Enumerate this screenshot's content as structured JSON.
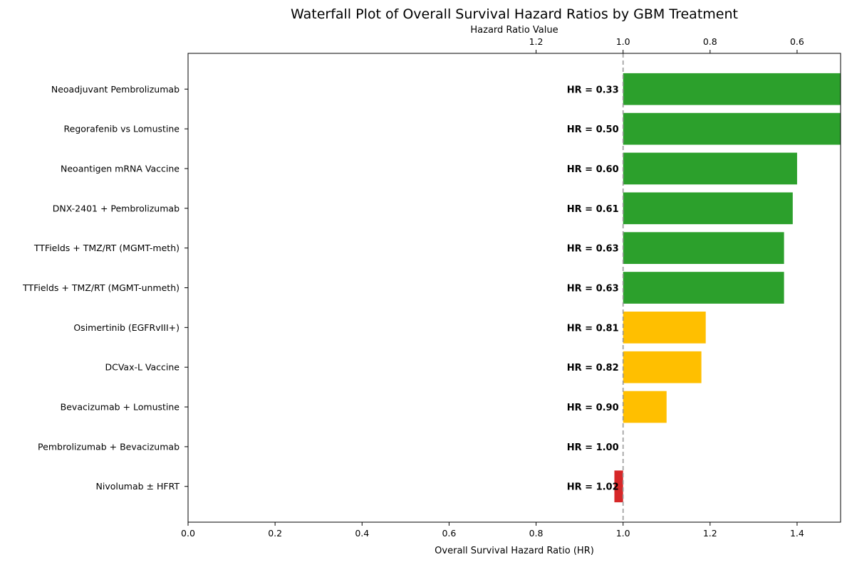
{
  "chart_data": {
    "type": "bar",
    "orientation": "horizontal",
    "title": "Waterfall Plot of Overall Survival Hazard Ratios by GBM Treatment",
    "xlabel": "Overall Survival Hazard Ratio (HR)",
    "top_axis_label": "Hazard Ratio Value",
    "xlim": [
      0.0,
      1.5
    ],
    "reference_line": 1.0,
    "x_ticks": [
      "0.0",
      "0.2",
      "0.4",
      "0.6",
      "0.8",
      "1.0",
      "1.2",
      "1.4"
    ],
    "top_ticks": [
      {
        "position": 0.8,
        "label": "1.2"
      },
      {
        "position": 1.0,
        "label": "1.0"
      },
      {
        "position": 1.2,
        "label": "0.8"
      },
      {
        "position": 1.4,
        "label": "0.6"
      }
    ],
    "categories": [
      "Neoadjuvant Pembrolizumab",
      "Regorafenib vs Lomustine",
      "Neoantigen mRNA Vaccine",
      "DNX-2401 + Pembrolizumab",
      "TTFields + TMZ/RT (MGMT-meth)",
      "TTFields + TMZ/RT (MGMT-unmeth)",
      "Osimertinib (EGFRvIII+)",
      "DCVax-L Vaccine",
      "Bevacizumab + Lomustine",
      "Pembrolizumab + Bevacizumab",
      "Nivolumab ± HFRT"
    ],
    "values": [
      0.33,
      0.5,
      0.6,
      0.61,
      0.63,
      0.63,
      0.81,
      0.82,
      0.9,
      1.0,
      1.02
    ],
    "labels": [
      "HR = 0.33",
      "HR = 0.50",
      "HR = 0.60",
      "HR = 0.61",
      "HR = 0.63",
      "HR = 0.63",
      "HR = 0.81",
      "HR = 0.82",
      "HR = 0.90",
      "HR = 1.00",
      "HR = 1.02"
    ],
    "colors": [
      "#2ca02c",
      "#2ca02c",
      "#2ca02c",
      "#2ca02c",
      "#2ca02c",
      "#2ca02c",
      "#ffbf00",
      "#ffbf00",
      "#ffbf00",
      "#ffbf00",
      "#d62728"
    ],
    "grid": false,
    "legend": "none"
  }
}
